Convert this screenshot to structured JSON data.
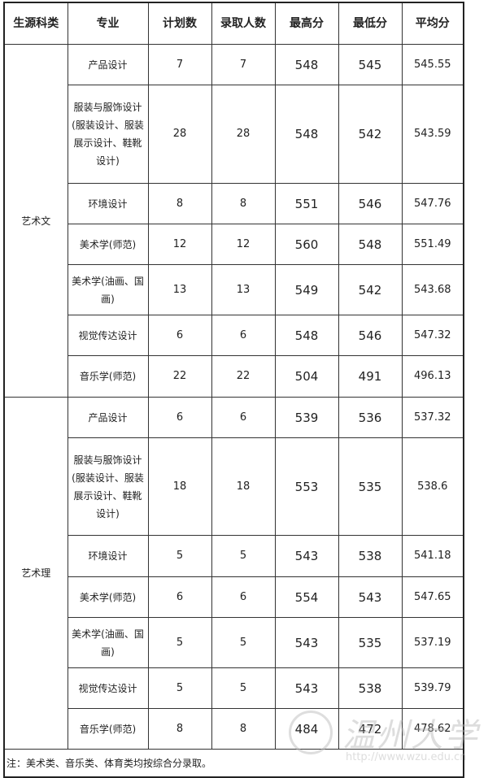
{
  "headers": [
    "生源科类",
    "专业",
    "计划数",
    "录取人数",
    "最高分",
    "最低分",
    "平均分"
  ],
  "groups": [
    {
      "category": "艺术文",
      "rows": [
        [
          "产品设计",
          "7",
          "7",
          "548",
          "545",
          "545.55"
        ],
        [
          "服装与服饰设计(服装设计、服装展示设计、鞋靴设计)",
          "28",
          "28",
          "548",
          "542",
          "543.59"
        ],
        [
          "环境设计",
          "8",
          "8",
          "551",
          "546",
          "547.76"
        ],
        [
          "美术学(师范)",
          "12",
          "12",
          "560",
          "548",
          "551.49"
        ],
        [
          "美术学(油画、国画)",
          "13",
          "13",
          "549",
          "542",
          "543.68"
        ],
        [
          "视觉传达设计",
          "6",
          "6",
          "548",
          "546",
          "547.32"
        ],
        [
          "音乐学(师范)",
          "22",
          "22",
          "504",
          "491",
          "496.13"
        ]
      ]
    },
    {
      "category": "艺术理",
      "rows": [
        [
          "产品设计",
          "6",
          "6",
          "539",
          "536",
          "537.32"
        ],
        [
          "服装与服饰设计(服装设计、服装展示设计、鞋靴设计)",
          "18",
          "18",
          "553",
          "535",
          "538.6"
        ],
        [
          "环境设计",
          "5",
          "5",
          "543",
          "538",
          "541.18"
        ],
        [
          "美术学(师范)",
          "6",
          "6",
          "554",
          "543",
          "547.65"
        ],
        [
          "美术学(油画、国画)",
          "5",
          "5",
          "543",
          "535",
          "537.19"
        ],
        [
          "视觉传达设计",
          "5",
          "5",
          "543",
          "538",
          "539.79"
        ],
        [
          "音乐学(师范)",
          "8",
          "8",
          "484",
          "472",
          "478.62"
        ]
      ]
    }
  ],
  "note": "注：美术类、音乐类、体育类均按综合分录取。",
  "watermark": {
    "name": "温州大学",
    "url": "http://www.wzu.edu.cn"
  }
}
